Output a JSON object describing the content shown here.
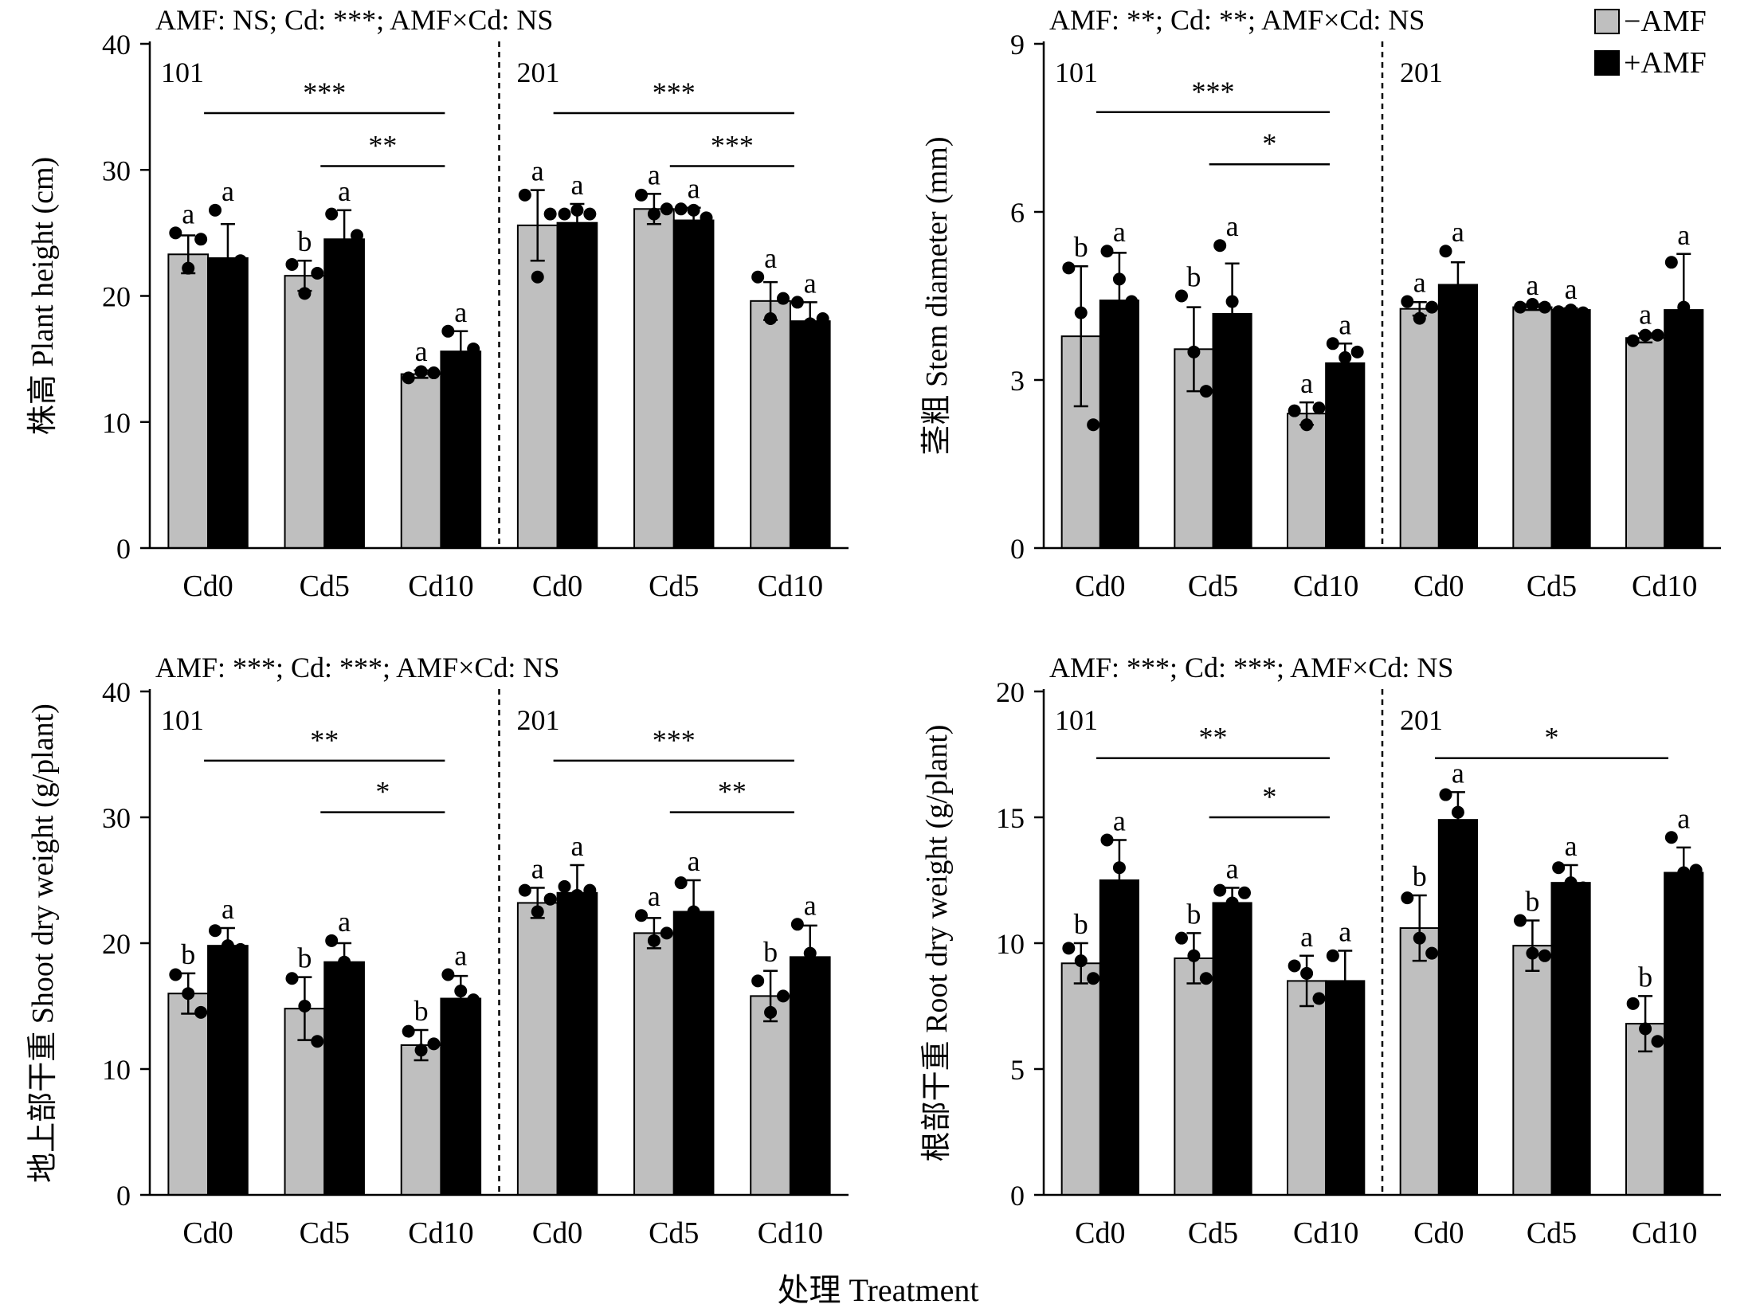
{
  "figure": {
    "x_title": "处理 Treatment",
    "legend": [
      {
        "label": "−AMF",
        "color": "#bfbfbf"
      },
      {
        "label": "+AMF",
        "color": "#000000"
      }
    ]
  },
  "chart_data": [
    {
      "type": "bar",
      "stats": "AMF: NS; Cd: ***; AMF×Cd: NS",
      "ylabel": "株高 Plant height (cm)",
      "ylim": [
        0,
        40
      ],
      "yticks": [
        0,
        10,
        20,
        30,
        40
      ],
      "cultivars": [
        "101",
        "201"
      ],
      "categories": [
        "Cd0",
        "Cd5",
        "Cd10",
        "Cd0",
        "Cd5",
        "Cd10"
      ],
      "series": [
        {
          "name": "−AMF",
          "values": [
            23.3,
            21.6,
            13.8,
            25.6,
            26.9,
            19.6
          ],
          "errors": [
            1.5,
            1.2,
            0.3,
            2.8,
            1.2,
            1.5
          ],
          "letters": [
            "a",
            "b",
            "a",
            "a",
            "a",
            "a"
          ],
          "points": [
            [
              25,
              22.2,
              24.5
            ],
            [
              22.5,
              20.2,
              21.8
            ],
            [
              13.5,
              14,
              13.9
            ],
            [
              28,
              21.5,
              26.5
            ],
            [
              28,
              26.5,
              26.9
            ],
            [
              21.5,
              18.2,
              19.8
            ]
          ]
        },
        {
          "name": "+AMF",
          "values": [
            23,
            24.5,
            15.6,
            25.8,
            26,
            18
          ],
          "errors": [
            2.7,
            2.3,
            1.6,
            1.5,
            1.0,
            1.5
          ],
          "letters": [
            "a",
            "a",
            "a",
            "a",
            "a",
            "a"
          ],
          "points": [
            [
              26.8,
              21.8,
              22.8
            ],
            [
              26.5,
              23.5,
              24.8
            ],
            [
              17.2,
              15,
              15.8
            ],
            [
              26.5,
              26.8,
              26.5
            ],
            [
              26.9,
              26.8,
              26.2
            ],
            [
              19.5,
              17.8,
              18.2
            ]
          ]
        }
      ],
      "brackets": [
        {
          "cultivar": 0,
          "from": 0,
          "to": 2,
          "label": "***",
          "y": 34.5
        },
        {
          "cultivar": 0,
          "from": 1,
          "to": 2,
          "label": "**",
          "y": 30.3
        },
        {
          "cultivar": 1,
          "from": 0,
          "to": 2,
          "label": "***",
          "y": 34.5
        },
        {
          "cultivar": 1,
          "from": 1,
          "to": 2,
          "label": "***",
          "y": 30.3
        }
      ]
    },
    {
      "type": "bar",
      "stats": "AMF: **; Cd: **; AMF×Cd: NS",
      "ylabel": "茎粗 Stem diameter (mm)",
      "ylim": [
        0,
        9
      ],
      "yticks": [
        0,
        3,
        6,
        9
      ],
      "cultivars": [
        "101",
        "201"
      ],
      "categories": [
        "Cd0",
        "Cd5",
        "Cd10",
        "Cd0",
        "Cd5",
        "Cd10"
      ],
      "series": [
        {
          "name": "−AMF",
          "values": [
            3.78,
            3.55,
            2.4,
            4.27,
            4.3,
            3.75
          ],
          "errors": [
            1.25,
            0.75,
            0.2,
            0.12,
            0.05,
            0.08
          ],
          "letters": [
            "b",
            "b",
            "a",
            "a",
            "a",
            "a"
          ],
          "points": [
            [
              5.0,
              4.2,
              2.2
            ],
            [
              4.5,
              3.5,
              2.8
            ],
            [
              2.45,
              2.2,
              2.5
            ],
            [
              4.4,
              4.1,
              4.3
            ],
            [
              4.3,
              4.35,
              4.3
            ],
            [
              3.7,
              3.8,
              3.8
            ]
          ]
        },
        {
          "name": "+AMF",
          "values": [
            4.42,
            4.18,
            3.3,
            4.7,
            4.25,
            4.25
          ],
          "errors": [
            0.85,
            0.9,
            0.35,
            0.4,
            0.03,
            1.0
          ],
          "letters": [
            "a",
            "a",
            "a",
            "a",
            "a",
            "a"
          ],
          "points": [
            [
              5.3,
              4.8,
              4.4
            ],
            [
              5.4,
              4.4,
              3.8
            ],
            [
              3.65,
              3.4,
              3.5
            ],
            [
              5.3,
              4.6,
              4.6
            ],
            [
              4.22,
              4.25,
              4.2
            ],
            [
              5.1,
              4.3,
              3.6
            ]
          ]
        }
      ],
      "brackets": [
        {
          "cultivar": 0,
          "from": 0,
          "to": 2,
          "label": "***",
          "y": 7.78
        },
        {
          "cultivar": 0,
          "from": 1,
          "to": 2,
          "label": "*",
          "y": 6.85
        }
      ]
    },
    {
      "type": "bar",
      "stats": "AMF: ***; Cd: ***; AMF×Cd: NS",
      "ylabel": "地上部干重 Shoot dry weight (g/plant)",
      "ylim": [
        0,
        40
      ],
      "yticks": [
        0,
        10,
        20,
        30,
        40
      ],
      "cultivars": [
        "101",
        "201"
      ],
      "categories": [
        "Cd0",
        "Cd5",
        "Cd10",
        "Cd0",
        "Cd5",
        "Cd10"
      ],
      "series": [
        {
          "name": "−AMF",
          "values": [
            16,
            14.8,
            11.9,
            23.2,
            20.8,
            15.8
          ],
          "errors": [
            1.6,
            2.5,
            1.2,
            1.2,
            1.2,
            2
          ],
          "letters": [
            "b",
            "b",
            "b",
            "a",
            "a",
            "b"
          ],
          "points": [
            [
              17.5,
              16,
              14.5
            ],
            [
              17.2,
              15,
              12.2
            ],
            [
              13,
              11.5,
              12
            ]
          ],
          "points2": [
            [
              24.2,
              22.5,
              23.5
            ],
            [
              22.2,
              20.2,
              20.8
            ],
            [
              17,
              14.5,
              15.8
            ]
          ]
        },
        {
          "name": "+AMF",
          "values": [
            19.8,
            18.5,
            15.6,
            24,
            22.5,
            18.9
          ],
          "errors": [
            1.4,
            1.5,
            1.8,
            2.2,
            2.5,
            2.5
          ],
          "letters": [
            "a",
            "a",
            "a",
            "a",
            "a",
            "a"
          ],
          "points": [
            [
              21,
              19.8,
              19.5
            ],
            [
              20.2,
              18.5,
              17.8
            ],
            [
              17.5,
              16.2,
              15.5
            ]
          ],
          "points2": [
            [
              24.5,
              23.8,
              24.2
            ],
            [
              24.8,
              22.5,
              20.5
            ],
            [
              21.5,
              19.2,
              16.5
            ]
          ]
        }
      ],
      "brackets": [
        {
          "cultivar": 0,
          "from": 0,
          "to": 2,
          "label": "**",
          "y": 34.5
        },
        {
          "cultivar": 0,
          "from": 1,
          "to": 2,
          "label": "*",
          "y": 30.4
        },
        {
          "cultivar": 1,
          "from": 0,
          "to": 2,
          "label": "***",
          "y": 34.5
        },
        {
          "cultivar": 1,
          "from": 1,
          "to": 2,
          "label": "**",
          "y": 30.4
        }
      ]
    },
    {
      "type": "bar",
      "stats": "AMF: ***; Cd: ***; AMF×Cd: NS",
      "ylabel": "根部干重 Root dry weight (g/plant)",
      "ylim": [
        0,
        20
      ],
      "yticks": [
        0,
        5,
        10,
        15,
        20
      ],
      "cultivars": [
        "101",
        "201"
      ],
      "categories": [
        "Cd0",
        "Cd5",
        "Cd10",
        "Cd0",
        "Cd5",
        "Cd10"
      ],
      "series": [
        {
          "name": "−AMF",
          "values": [
            9.2,
            9.4,
            8.5,
            10.6,
            9.9,
            6.8
          ],
          "errors": [
            0.8,
            1.0,
            1.0,
            1.3,
            1.0,
            1.1
          ],
          "letters": [
            "b",
            "b",
            "a",
            "b",
            "b",
            "b"
          ],
          "points": [
            [
              9.8,
              9.3,
              8.6
            ],
            [
              10.2,
              9.5,
              8.6
            ],
            [
              9.1,
              8.8,
              7.8
            ],
            [
              11.8,
              10.2,
              9.6
            ],
            [
              10.9,
              9.6,
              9.5
            ],
            [
              7.6,
              6.6,
              6.1
            ]
          ]
        },
        {
          "name": "+AMF",
          "values": [
            12.5,
            11.6,
            8.5,
            14.9,
            12.4,
            12.8
          ],
          "errors": [
            1.6,
            0.6,
            1.2,
            1.1,
            0.7,
            1.0
          ],
          "letters": [
            "a",
            "a",
            "a",
            "a",
            "a",
            "a"
          ],
          "points": [
            [
              14.1,
              13,
              11.9
            ],
            [
              12.1,
              11.6,
              12
            ],
            [
              9.5,
              8.2,
              7.9
            ],
            [
              15.9,
              15.2,
              14.4
            ],
            [
              13,
              12.4,
              12.2
            ],
            [
              14.2,
              12.8,
              12.9
            ]
          ]
        }
      ],
      "brackets": [
        {
          "cultivar": 0,
          "from": 0,
          "to": 2,
          "label": "**",
          "y": 17.35
        },
        {
          "cultivar": 0,
          "from": 1,
          "to": 2,
          "label": "*",
          "y": 15.0
        },
        {
          "cultivar": 1,
          "from": 0,
          "to": 2,
          "label": "*",
          "y": 17.35
        }
      ]
    }
  ]
}
